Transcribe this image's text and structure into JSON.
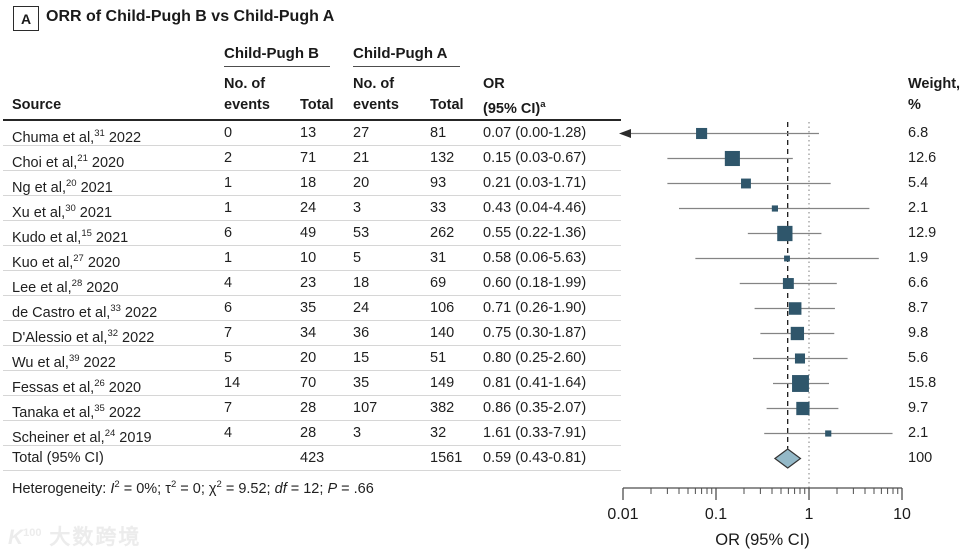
{
  "panel": {
    "label": "A",
    "title": "ORR of Child-Pugh B vs Child-Pugh A"
  },
  "table": {
    "group_b": "Child-Pugh B",
    "group_a": "Child-Pugh A",
    "headers": {
      "source": "Source",
      "no_of": "No. of",
      "events": "events",
      "total": "Total",
      "or_line1": "OR",
      "or_line2": "(95% CI)",
      "or_footnote": "a",
      "weight_line1": "Weight,",
      "weight_line2": "%"
    }
  },
  "chart_data": {
    "type": "forest",
    "effect_measure": "OR",
    "studies": [
      {
        "source": "Chuma et al,",
        "ref": "31",
        "year": "2022",
        "b_events": "0",
        "b_total": "13",
        "a_events": "27",
        "a_total": "81",
        "or_text": "0.07 (0.00-1.28)",
        "or": 0.07,
        "lo": 0.0,
        "hi": 1.28,
        "weight": "6.8",
        "arrow_left": true
      },
      {
        "source": "Choi et al,",
        "ref": "21",
        "year": "2020",
        "b_events": "2",
        "b_total": "71",
        "a_events": "21",
        "a_total": "132",
        "or_text": "0.15 (0.03-0.67)",
        "or": 0.15,
        "lo": 0.03,
        "hi": 0.67,
        "weight": "12.6",
        "arrow_left": false
      },
      {
        "source": "Ng et al,",
        "ref": "20",
        "year": "2021",
        "b_events": "1",
        "b_total": "18",
        "a_events": "20",
        "a_total": "93",
        "or_text": "0.21 (0.03-1.71)",
        "or": 0.21,
        "lo": 0.03,
        "hi": 1.71,
        "weight": "5.4",
        "arrow_left": false
      },
      {
        "source": "Xu et al,",
        "ref": "30",
        "year": "2021",
        "b_events": "1",
        "b_total": "24",
        "a_events": "3",
        "a_total": "33",
        "or_text": "0.43 (0.04-4.46)",
        "or": 0.43,
        "lo": 0.04,
        "hi": 4.46,
        "weight": "2.1",
        "arrow_left": false
      },
      {
        "source": "Kudo et al,",
        "ref": "15",
        "year": "2021",
        "b_events": "6",
        "b_total": "49",
        "a_events": "53",
        "a_total": "262",
        "or_text": "0.55 (0.22-1.36)",
        "or": 0.55,
        "lo": 0.22,
        "hi": 1.36,
        "weight": "12.9",
        "arrow_left": false
      },
      {
        "source": "Kuo et al,",
        "ref": "27",
        "year": "2020",
        "b_events": "1",
        "b_total": "10",
        "a_events": "5",
        "a_total": "31",
        "or_text": "0.58 (0.06-5.63)",
        "or": 0.58,
        "lo": 0.06,
        "hi": 5.63,
        "weight": "1.9",
        "arrow_left": false
      },
      {
        "source": "Lee et al,",
        "ref": "28",
        "year": "2020",
        "b_events": "4",
        "b_total": "23",
        "a_events": "18",
        "a_total": "69",
        "or_text": "0.60 (0.18-1.99)",
        "or": 0.6,
        "lo": 0.18,
        "hi": 1.99,
        "weight": "6.6",
        "arrow_left": false
      },
      {
        "source": "de Castro et al,",
        "ref": "33",
        "year": "2022",
        "b_events": "6",
        "b_total": "35",
        "a_events": "24",
        "a_total": "106",
        "or_text": "0.71 (0.26-1.90)",
        "or": 0.71,
        "lo": 0.26,
        "hi": 1.9,
        "weight": "8.7",
        "arrow_left": false
      },
      {
        "source": "D'Alessio et al,",
        "ref": "32",
        "year": "2022",
        "b_events": "7",
        "b_total": "34",
        "a_events": "36",
        "a_total": "140",
        "or_text": "0.75 (0.30-1.87)",
        "or": 0.75,
        "lo": 0.3,
        "hi": 1.87,
        "weight": "9.8",
        "arrow_left": false
      },
      {
        "source": "Wu et al,",
        "ref": "39",
        "year": "2022",
        "b_events": "5",
        "b_total": "20",
        "a_events": "15",
        "a_total": "51",
        "or_text": "0.80 (0.25-2.60)",
        "or": 0.8,
        "lo": 0.25,
        "hi": 2.6,
        "weight": "5.6",
        "arrow_left": false
      },
      {
        "source": "Fessas et al,",
        "ref": "26",
        "year": "2020",
        "b_events": "14",
        "b_total": "70",
        "a_events": "35",
        "a_total": "149",
        "or_text": "0.81 (0.41-1.64)",
        "or": 0.81,
        "lo": 0.41,
        "hi": 1.64,
        "weight": "15.8",
        "arrow_left": false
      },
      {
        "source": "Tanaka et al,",
        "ref": "35",
        "year": "2022",
        "b_events": "7",
        "b_total": "28",
        "a_events": "107",
        "a_total": "382",
        "or_text": "0.86 (0.35-2.07)",
        "or": 0.86,
        "lo": 0.35,
        "hi": 2.07,
        "weight": "9.7",
        "arrow_left": false
      },
      {
        "source": "Scheiner et al,",
        "ref": "24",
        "year": "2019",
        "b_events": "4",
        "b_total": "28",
        "a_events": "3",
        "a_total": "32",
        "or_text": "1.61 (0.33-7.91)",
        "or": 1.61,
        "lo": 0.33,
        "hi": 7.91,
        "weight": "2.1",
        "arrow_left": false
      }
    ],
    "total": {
      "label": "Total (95% CI)",
      "b_total": "423",
      "a_total": "1561",
      "or_text": "0.59 (0.43-0.81)",
      "or": 0.59,
      "lo": 0.43,
      "hi": 0.81,
      "weight": "100"
    },
    "null_line": 1,
    "pooled_line": 0.59,
    "axis": {
      "scale": "log",
      "min": 0.01,
      "max": 10,
      "tick_labels": [
        "0.01",
        "0.1",
        "1",
        "10"
      ],
      "tick_values": [
        0.01,
        0.1,
        1,
        10
      ],
      "label": "OR (95% CI)"
    },
    "heterogeneity_segments": [
      {
        "text": "Heterogeneity: "
      },
      {
        "text": "I",
        "italic": true
      },
      {
        "text": "2",
        "sup": true
      },
      {
        "text": " = 0%; τ"
      },
      {
        "text": "2",
        "sup": true
      },
      {
        "text": " = 0; χ"
      },
      {
        "text": "2",
        "sup": true
      },
      {
        "text": " = 9.52; "
      },
      {
        "text": "df",
        "italic": true
      },
      {
        "text": " = 12; "
      },
      {
        "text": "P",
        "italic": true
      },
      {
        "text": " = .66"
      }
    ],
    "colors": {
      "marker": "#2f566b",
      "diamond_fill": "#94b9c8",
      "diamond_stroke": "#333333",
      "ci_line": "#848484",
      "dashed_line": "#1a1a1a",
      "dotted_line": "#9c9c9c",
      "axis": "#4d4d4d",
      "text": "#1a1a1a"
    }
  },
  "watermark": {
    "icon": "K",
    "icon_sup": "100",
    "text": "大数跨境"
  }
}
